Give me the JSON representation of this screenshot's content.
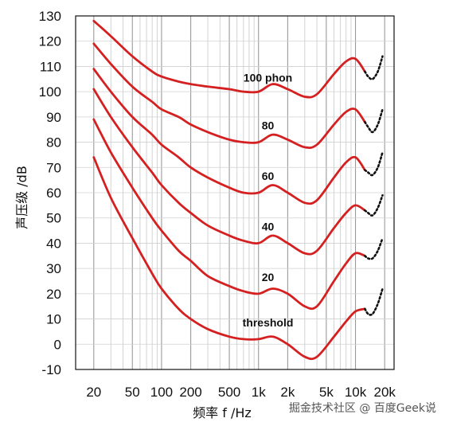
{
  "chart_data": {
    "type": "line",
    "xlabel": "频率 f /Hz",
    "ylabel": "声压级 /dB",
    "x_scale": "log",
    "xlim": [
      13,
      25000
    ],
    "ylim": [
      -10,
      130
    ],
    "grid": true,
    "x_tick_values": [
      20,
      50,
      100,
      200,
      500,
      1000,
      2000,
      5000,
      10000,
      20000
    ],
    "x_tick_labels": [
      "20",
      "50",
      "100",
      "200",
      "500",
      "1k",
      "2k",
      "5k",
      "10k",
      "20k"
    ],
    "y_ticks": [
      130,
      120,
      110,
      100,
      90,
      80,
      70,
      60,
      50,
      40,
      30,
      20,
      10,
      0,
      -10
    ],
    "series": [
      {
        "name": "100 phon",
        "color": "#d42020",
        "x": [
          20,
          30,
          50,
          80,
          100,
          150,
          200,
          300,
          500,
          700,
          1000,
          1400,
          2000,
          3000,
          4000,
          6000,
          8000,
          10000,
          12500
        ],
        "y": [
          128,
          122,
          114,
          108,
          106,
          104,
          103,
          102,
          101,
          100,
          100,
          103,
          101,
          98,
          99,
          107,
          112,
          113,
          108
        ],
        "dotted": {
          "x": [
            13500,
            15000,
            17000,
            19000
          ],
          "y": [
            106,
            105,
            108,
            114
          ]
        }
      },
      {
        "name": "80",
        "color": "#d42020",
        "x": [
          20,
          30,
          50,
          80,
          100,
          150,
          200,
          300,
          500,
          700,
          1000,
          1400,
          2000,
          3000,
          4000,
          6000,
          8000,
          10000,
          12500
        ],
        "y": [
          119,
          111,
          102,
          96,
          93,
          90,
          87,
          84,
          81,
          80,
          80,
          83,
          81,
          78,
          79,
          87,
          92,
          93,
          88
        ],
        "dotted": {
          "x": [
            13500,
            15000,
            17000,
            19000
          ],
          "y": [
            86,
            84,
            87,
            93
          ]
        }
      },
      {
        "name": "60",
        "color": "#d42020",
        "x": [
          20,
          30,
          50,
          80,
          100,
          150,
          200,
          300,
          500,
          700,
          1000,
          1400,
          2000,
          3000,
          4000,
          6000,
          8000,
          10000,
          12500
        ],
        "y": [
          109,
          100,
          90,
          83,
          79,
          74,
          70,
          66,
          62,
          60,
          60,
          63,
          60,
          56,
          57,
          66,
          72,
          74,
          69
        ],
        "dotted": {
          "x": [
            13500,
            15000,
            17000,
            19000
          ],
          "y": [
            68,
            67,
            70,
            76
          ]
        }
      },
      {
        "name": "40",
        "color": "#d42020",
        "x": [
          20,
          30,
          50,
          80,
          100,
          150,
          200,
          300,
          500,
          700,
          1000,
          1400,
          2000,
          3000,
          4000,
          6000,
          8000,
          10000,
          12500
        ],
        "y": [
          101,
          90,
          78,
          68,
          63,
          56,
          52,
          47,
          43,
          41,
          40,
          43,
          40,
          36,
          37,
          46,
          52,
          55,
          53
        ],
        "dotted": {
          "x": [
            13500,
            15000,
            17000,
            19000
          ],
          "y": [
            52,
            51,
            54,
            59
          ]
        }
      },
      {
        "name": "20",
        "color": "#d42020",
        "x": [
          20,
          30,
          50,
          80,
          100,
          150,
          200,
          300,
          500,
          700,
          1000,
          1400,
          2000,
          3000,
          4000,
          6000,
          8000,
          10000,
          12500
        ],
        "y": [
          89,
          76,
          62,
          50,
          45,
          37,
          33,
          27,
          23,
          21,
          20,
          22,
          20,
          15,
          15,
          25,
          32,
          36,
          35
        ],
        "dotted": {
          "x": [
            13500,
            15000,
            17000,
            19000
          ],
          "y": [
            34,
            34,
            37,
            42
          ]
        }
      },
      {
        "name": "threshold",
        "color": "#d42020",
        "x": [
          20,
          30,
          50,
          80,
          100,
          150,
          200,
          300,
          500,
          700,
          1000,
          1400,
          2000,
          3000,
          4000,
          6000,
          8000,
          10000,
          12500
        ],
        "y": [
          74,
          58,
          42,
          28,
          22,
          14,
          10,
          6,
          3,
          2,
          2,
          3,
          0,
          -5,
          -5,
          3,
          9,
          13,
          14
        ],
        "dotted": {
          "x": [
            13500,
            15000,
            17000,
            19000
          ],
          "y": [
            12,
            12,
            16,
            22
          ]
        }
      }
    ],
    "annotations": [
      {
        "text": "100 phon",
        "x": 1250,
        "y": 104
      },
      {
        "text": "80",
        "x": 1250,
        "y": 85
      },
      {
        "text": "60",
        "x": 1250,
        "y": 65
      },
      {
        "text": "40",
        "x": 1250,
        "y": 45
      },
      {
        "text": "20",
        "x": 1250,
        "y": 25
      },
      {
        "text": "threshold",
        "x": 1250,
        "y": 7
      }
    ]
  },
  "watermark": "掘金技术社区 @ 百度Geek说"
}
